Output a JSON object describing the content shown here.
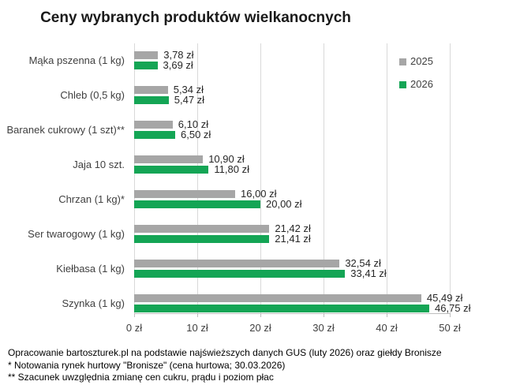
{
  "chart_data": {
    "type": "bar",
    "orientation": "horizontal",
    "title": "Ceny wybranych produktów wielkanocnych",
    "categories": [
      "Mąka pszenna (1 kg)",
      "Chleb (0,5 kg)",
      "Baranek cukrowy (1 szt)**",
      "Jaja 10 szt.",
      "Chrzan (1 kg)*",
      "Ser twarogowy (1 kg)",
      "Kiełbasa (1 kg)",
      "Szynka (1 kg)"
    ],
    "series": [
      {
        "name": "2025",
        "color": "#a6a6a6",
        "values": [
          3.78,
          5.34,
          6.1,
          10.9,
          16.0,
          21.42,
          32.54,
          45.49
        ],
        "labels": [
          "3,78 zł",
          "5,34 zł",
          "6,10 zł",
          "10,90 zł",
          "16,00 zł",
          "21,42 zł",
          "32,54 zł",
          "45,49 zł"
        ]
      },
      {
        "name": "2026",
        "color": "#14a555",
        "values": [
          3.69,
          5.47,
          6.5,
          11.8,
          20.0,
          21.41,
          33.41,
          46.75
        ],
        "labels": [
          "3,69 zł",
          "5,47 zł",
          "6,50 zł",
          "11,80 zł",
          "20,00 zł",
          "21,41 zł",
          "33,41 zł",
          "46,75 zł"
        ]
      }
    ],
    "x_axis": {
      "min": 0,
      "max": 50,
      "tick_values": [
        0,
        10,
        20,
        30,
        40,
        50
      ],
      "tick_labels": [
        "0 zł",
        "10 zł",
        "20 zł",
        "30 zł",
        "40 zł",
        "50 zł"
      ]
    },
    "legend": {
      "position": "top-right"
    },
    "grid": true
  },
  "footnotes": [
    "Opracowanie bartoszturek.pl na podstawie najświeższych danych GUS (luty 2026) oraz giełdy Bronisze",
    "* Notowania rynek hurtowy \"Bronisze\" (cena hurtowa; 30.03.2026)",
    "** Szacunek uwzględnia zmianę cen cukru, prądu i poziom płac"
  ]
}
